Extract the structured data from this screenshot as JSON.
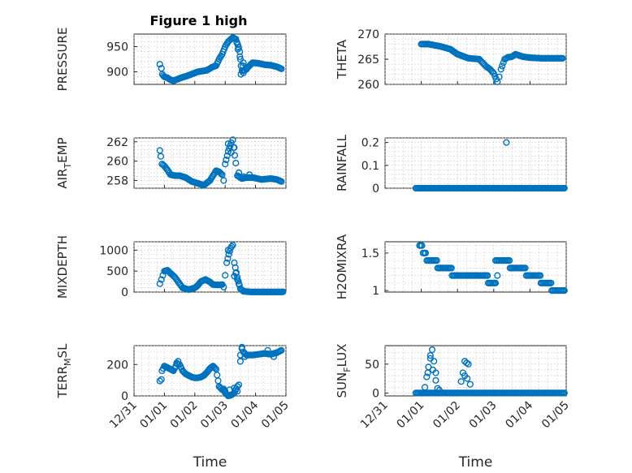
{
  "figure_title": "Figure 1 high",
  "chart_data": [
    {
      "type": "scatter",
      "id": "pressure",
      "ylabel": "PRESSURE",
      "xlabel": "",
      "title": "Figure 1 high",
      "xlim": [
        0,
        5
      ],
      "ylim": [
        875,
        975
      ],
      "yticks": [
        900,
        950
      ],
      "ytick_labels": [
        "900",
        "950"
      ],
      "xticks": [
        0,
        1,
        2,
        3,
        4,
        5
      ],
      "color": "#0072BD",
      "curve": [
        [
          0.85,
          915
        ],
        [
          0.9,
          907
        ],
        [
          0.93,
          895
        ],
        [
          1.0,
          890
        ],
        [
          1.1,
          888
        ],
        [
          1.2,
          884
        ],
        [
          1.3,
          882
        ],
        [
          1.5,
          887
        ],
        [
          1.8,
          893
        ],
        [
          2.1,
          900
        ],
        [
          2.4,
          903
        ],
        [
          2.6,
          910
        ],
        [
          2.7,
          912
        ],
        [
          2.8,
          925
        ],
        [
          2.9,
          935
        ],
        [
          3.0,
          950
        ],
        [
          3.1,
          960
        ],
        [
          3.25,
          968
        ],
        [
          3.35,
          965
        ],
        [
          3.45,
          948
        ],
        [
          3.52,
          912
        ],
        [
          3.55,
          902
        ],
        [
          3.65,
          903
        ],
        [
          3.8,
          912
        ],
        [
          3.9,
          918
        ],
        [
          4.1,
          917
        ],
        [
          4.3,
          914
        ],
        [
          4.5,
          913
        ],
        [
          4.7,
          910
        ],
        [
          4.85,
          906
        ]
      ],
      "extra": [
        [
          3.38,
          958
        ],
        [
          3.42,
          945
        ],
        [
          3.48,
          940
        ],
        [
          3.5,
          925
        ],
        [
          3.52,
          895
        ],
        [
          3.6,
          898
        ],
        [
          3.58,
          912
        ],
        [
          3.6,
          918
        ],
        [
          3.7,
          905
        ]
      ]
    },
    {
      "type": "scatter",
      "id": "theta",
      "ylabel": "THETA",
      "xlabel": "",
      "xlim": [
        0,
        5
      ],
      "ylim": [
        260,
        270
      ],
      "yticks": [
        260,
        265,
        270
      ],
      "ytick_labels": [
        "260",
        "265",
        "270"
      ],
      "xticks": [
        0,
        1,
        2,
        3,
        4,
        5
      ],
      "color": "#0072BD",
      "curve": [
        [
          1.0,
          268
        ],
        [
          1.2,
          268
        ],
        [
          1.5,
          267.6
        ],
        [
          1.8,
          267
        ],
        [
          2.0,
          266
        ],
        [
          2.3,
          265.2
        ],
        [
          2.6,
          265
        ],
        [
          2.8,
          263.5
        ],
        [
          2.9,
          263
        ],
        [
          3.0,
          262.2
        ],
        [
          3.1,
          260.5
        ],
        [
          3.15,
          261.5
        ],
        [
          3.2,
          263
        ],
        [
          3.3,
          265
        ],
        [
          3.4,
          265.4
        ],
        [
          3.5,
          265.5
        ],
        [
          3.6,
          266
        ],
        [
          3.8,
          265.5
        ],
        [
          4.0,
          265.3
        ],
        [
          4.3,
          265.2
        ],
        [
          4.6,
          265.2
        ],
        [
          4.9,
          265.2
        ]
      ],
      "extra": []
    },
    {
      "type": "scatter",
      "id": "air-temp",
      "ylabel": "AIR_TEMP",
      "xlabel": "",
      "xlim": [
        0,
        5
      ],
      "ylim": [
        257.2,
        262.4
      ],
      "yticks": [
        258,
        260,
        262
      ],
      "ytick_labels": [
        "258",
        "260",
        "262"
      ],
      "xticks": [
        0,
        1,
        2,
        3,
        4,
        5
      ],
      "color": "#0072BD",
      "curve": [
        [
          0.85,
          261.1
        ],
        [
          0.88,
          260.5
        ],
        [
          0.92,
          259.7
        ],
        [
          1.0,
          259.5
        ],
        [
          1.1,
          259.1
        ],
        [
          1.2,
          258.6
        ],
        [
          1.35,
          258.5
        ],
        [
          1.5,
          258.5
        ],
        [
          1.7,
          258.3
        ],
        [
          1.9,
          257.9
        ],
        [
          2.1,
          257.7
        ],
        [
          2.3,
          257.5
        ],
        [
          2.5,
          258
        ],
        [
          2.6,
          258.5
        ],
        [
          2.7,
          259
        ],
        [
          2.8,
          258.9
        ],
        [
          2.9,
          258.6
        ],
        [
          2.95,
          258
        ],
        [
          3.0,
          259.7
        ],
        [
          3.1,
          261
        ],
        [
          3.2,
          261.9
        ],
        [
          3.25,
          262.2
        ],
        [
          3.35,
          259.8
        ],
        [
          3.4,
          258.5
        ],
        [
          3.55,
          258.2
        ],
        [
          3.7,
          258.3
        ],
        [
          3.9,
          258.3
        ],
        [
          4.2,
          258.1
        ],
        [
          4.5,
          258.2
        ],
        [
          4.7,
          258.1
        ],
        [
          4.85,
          257.9
        ]
      ],
      "extra": [
        [
          3.1,
          261.8
        ],
        [
          3.2,
          260.9
        ],
        [
          3.3,
          261.4
        ],
        [
          3.45,
          258.8
        ],
        [
          3.6,
          258.4
        ],
        [
          3.8,
          258.6
        ]
      ]
    },
    {
      "type": "scatter",
      "id": "rainfall",
      "ylabel": "RAINFALL",
      "xlabel": "",
      "xlim": [
        0,
        5
      ],
      "ylim": [
        0,
        0.22
      ],
      "yticks": [
        0,
        0.1,
        0.2
      ],
      "ytick_labels": [
        "0",
        "0.1",
        "0.2"
      ],
      "xticks": [
        0,
        1,
        2,
        3,
        4,
        5
      ],
      "color": "#0072BD",
      "curve": [
        [
          0.85,
          0
        ],
        [
          4.95,
          0
        ]
      ],
      "extra": [
        [
          3.35,
          0.2
        ]
      ]
    },
    {
      "type": "scatter",
      "id": "mixdepth",
      "ylabel": "MIXDEPTH",
      "xlabel": "",
      "xlim": [
        0,
        5
      ],
      "ylim": [
        0,
        1200
      ],
      "yticks": [
        0,
        500,
        1000
      ],
      "ytick_labels": [
        "0",
        "500",
        "1000"
      ],
      "xticks": [
        0,
        1,
        2,
        3,
        4,
        5
      ],
      "color": "#0072BD",
      "curve": [
        [
          0.85,
          200
        ],
        [
          0.9,
          300
        ],
        [
          0.95,
          400
        ],
        [
          1.0,
          500
        ],
        [
          1.1,
          520
        ],
        [
          1.2,
          450
        ],
        [
          1.35,
          350
        ],
        [
          1.5,
          200
        ],
        [
          1.6,
          100
        ],
        [
          1.8,
          60
        ],
        [
          2.0,
          100
        ],
        [
          2.1,
          160
        ],
        [
          2.2,
          250
        ],
        [
          2.35,
          300
        ],
        [
          2.5,
          240
        ],
        [
          2.6,
          180
        ],
        [
          2.75,
          170
        ],
        [
          2.9,
          180
        ],
        [
          2.95,
          120
        ],
        [
          3.0,
          400
        ],
        [
          3.05,
          700
        ],
        [
          3.12,
          900
        ],
        [
          3.18,
          1050
        ],
        [
          3.25,
          1120
        ],
        [
          3.3,
          700
        ],
        [
          3.4,
          350
        ],
        [
          3.5,
          80
        ],
        [
          3.6,
          20
        ],
        [
          3.8,
          5
        ],
        [
          4.2,
          2
        ],
        [
          4.6,
          2
        ],
        [
          4.9,
          5
        ]
      ],
      "extra": [
        [
          3.35,
          450
        ],
        [
          3.3,
          380
        ],
        [
          3.4,
          300
        ],
        [
          3.45,
          200
        ],
        [
          3.1,
          1000
        ]
      ]
    },
    {
      "type": "scatter",
      "id": "h2omixra",
      "ylabel": "H2OMIXRA",
      "xlabel": "",
      "xlim": [
        0,
        5
      ],
      "ylim": [
        0.98,
        1.65
      ],
      "yticks": [
        1,
        1.5
      ],
      "ytick_labels": [
        "1",
        "1.5"
      ],
      "xticks": [
        0,
        1,
        2,
        3,
        4,
        5
      ],
      "color": "#0072BD",
      "steps": [
        [
          0.95,
          1.05,
          1.6
        ],
        [
          1.05,
          1.15,
          1.5
        ],
        [
          1.15,
          1.45,
          1.4
        ],
        [
          1.45,
          1.85,
          1.3
        ],
        [
          1.85,
          2.85,
          1.2
        ],
        [
          2.85,
          3.05,
          1.1
        ],
        [
          3.05,
          3.45,
          1.4
        ],
        [
          3.45,
          3.9,
          1.3
        ],
        [
          3.9,
          4.3,
          1.2
        ],
        [
          4.3,
          4.6,
          1.1
        ],
        [
          4.6,
          4.95,
          1.0
        ]
      ],
      "extra": [
        [
          3.1,
          1.2
        ],
        [
          3.05,
          1.1
        ]
      ]
    },
    {
      "type": "scatter",
      "id": "terr-msl",
      "ylabel": "TERR_MSL",
      "xlabel": "Time",
      "xlim": [
        0,
        5
      ],
      "ylim": [
        0,
        320
      ],
      "yticks": [
        0,
        200
      ],
      "ytick_labels": [
        "0",
        "200"
      ],
      "xticks": [
        0,
        1,
        2,
        3,
        4,
        5
      ],
      "xtick_labels": [
        "12/31",
        "01/01",
        "01/02",
        "01/03",
        "01/04",
        "01/05"
      ],
      "color": "#0072BD",
      "curve": [
        [
          0.85,
          95
        ],
        [
          0.9,
          105
        ],
        [
          0.92,
          160
        ],
        [
          1.0,
          190
        ],
        [
          1.1,
          180
        ],
        [
          1.2,
          170
        ],
        [
          1.3,
          160
        ],
        [
          1.45,
          220
        ],
        [
          1.5,
          200
        ],
        [
          1.6,
          160
        ],
        [
          1.7,
          140
        ],
        [
          1.8,
          130
        ],
        [
          1.9,
          120
        ],
        [
          2.0,
          115
        ],
        [
          2.1,
          115
        ],
        [
          2.2,
          120
        ],
        [
          2.3,
          130
        ],
        [
          2.4,
          150
        ],
        [
          2.5,
          175
        ],
        [
          2.6,
          190
        ],
        [
          2.7,
          170
        ],
        [
          2.8,
          60
        ],
        [
          2.9,
          40
        ],
        [
          3.0,
          30
        ],
        [
          3.05,
          10
        ],
        [
          3.1,
          0
        ],
        [
          3.2,
          5
        ],
        [
          3.3,
          20
        ],
        [
          3.4,
          60
        ],
        [
          3.45,
          70
        ],
        [
          3.5,
          220
        ],
        [
          3.55,
          300
        ],
        [
          3.6,
          280
        ],
        [
          3.7,
          260
        ],
        [
          3.9,
          260
        ],
        [
          4.1,
          265
        ],
        [
          4.3,
          270
        ],
        [
          4.5,
          265
        ],
        [
          4.7,
          275
        ],
        [
          4.85,
          290
        ]
      ],
      "extra": [
        [
          2.95,
          45
        ],
        [
          3.0,
          20
        ],
        [
          3.15,
          40
        ],
        [
          3.3,
          50
        ],
        [
          3.4,
          30
        ],
        [
          3.5,
          260
        ],
        [
          3.55,
          310
        ],
        [
          3.65,
          250
        ],
        [
          4.4,
          290
        ],
        [
          4.6,
          250
        ],
        [
          1.45,
          200
        ],
        [
          1.4,
          210
        ]
      ]
    },
    {
      "type": "scatter",
      "id": "sun-flux",
      "ylabel": "SUN_FLUX",
      "xlabel": "Time",
      "xlim": [
        0,
        5
      ],
      "ylim": [
        -5,
        82
      ],
      "yticks": [
        0,
        50
      ],
      "ytick_labels": [
        "0",
        "50"
      ],
      "xticks": [
        0,
        1,
        2,
        3,
        4,
        5
      ],
      "xtick_labels": [
        "12/31",
        "01/01",
        "01/02",
        "01/03",
        "01/04",
        "01/05"
      ],
      "color": "#0072BD",
      "curve": [
        [
          0.85,
          0
        ],
        [
          4.95,
          0
        ]
      ],
      "extra": [
        [
          1.1,
          10
        ],
        [
          1.15,
          28
        ],
        [
          1.2,
          45
        ],
        [
          1.25,
          60
        ],
        [
          1.3,
          75
        ],
        [
          1.35,
          55
        ],
        [
          1.4,
          35
        ],
        [
          1.45,
          8
        ],
        [
          1.5,
          5
        ],
        [
          1.25,
          65
        ],
        [
          1.32,
          40
        ],
        [
          1.18,
          35
        ],
        [
          1.4,
          22
        ],
        [
          2.1,
          20
        ],
        [
          2.15,
          35
        ],
        [
          2.2,
          55
        ],
        [
          2.25,
          52
        ],
        [
          2.3,
          50
        ],
        [
          2.35,
          15
        ],
        [
          2.2,
          30
        ],
        [
          2.27,
          25
        ]
      ]
    }
  ]
}
